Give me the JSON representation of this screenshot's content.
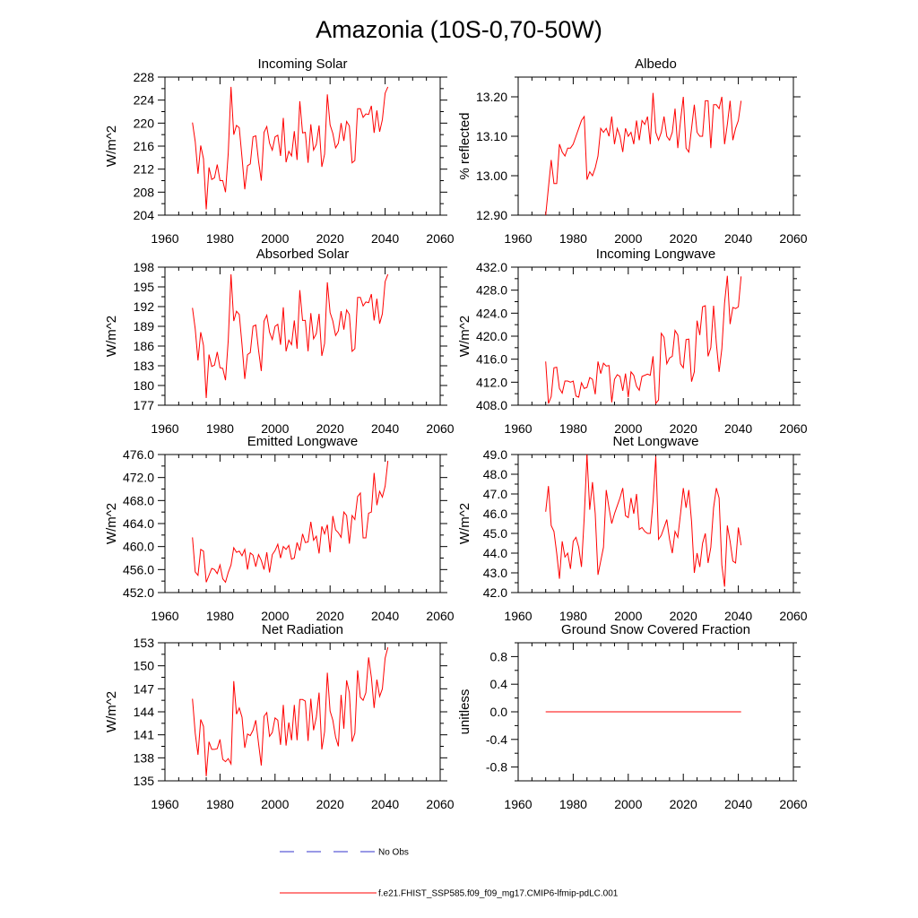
{
  "figure": {
    "title": "Amazonia (10S-0,70-50W)",
    "legend": {
      "obs_label": "No Obs",
      "model_label": "f.e21.FHIST_SSP585.f09_f09_mg17.CMIP6-lfmip-pdLC.001",
      "obs_color": "#3333cc",
      "model_color": "#ff0000"
    }
  },
  "chart_data": [
    {
      "type": "line",
      "title": "Incoming Solar",
      "xlabel": "",
      "ylabel": "W/m^2",
      "xlim": [
        1960,
        2060
      ],
      "ylim": [
        204,
        228
      ],
      "xticks": [
        "1960",
        "1980",
        "2000",
        "2020",
        "2040",
        "2060"
      ],
      "yticks": [
        "204",
        "208",
        "212",
        "216",
        "220",
        "224",
        "228"
      ],
      "series": [
        {
          "name": "f.e21.FHIST_SSP585.f09_f09_mg17.CMIP6-lfmip-pdLC.001",
          "x_start": 1970,
          "values": [
            220.1,
            216.8,
            211.2,
            216.1,
            213.8,
            205.0,
            212.3,
            210.2,
            210.5,
            212.8,
            210.0,
            210.0,
            208.0,
            214.8,
            226.3,
            218.0,
            219.6,
            219.2,
            214.0,
            208.5,
            212.6,
            212.9,
            217.6,
            217.8,
            213.4,
            210.0,
            218.4,
            219.4,
            216.5,
            215.3,
            217.6,
            217.9,
            214.3,
            220.9,
            213.2,
            215.1,
            214.3,
            218.6,
            213.6,
            223.8,
            218.3,
            218.4,
            213.1,
            219.8,
            215.3,
            216.3,
            219.6,
            212.4,
            214.6,
            225.0,
            219.7,
            218.2,
            215.7,
            216.5,
            220.0,
            216.9,
            220.3,
            219.5,
            213.1,
            213.5,
            222.5,
            222.5,
            221.0,
            221.6,
            221.5,
            223.0,
            218.3,
            222.2,
            218.5,
            220.6,
            225.2,
            226.3
          ]
        }
      ]
    },
    {
      "type": "line",
      "title": "Albedo",
      "xlabel": "",
      "ylabel": "% reflected",
      "xlim": [
        1960,
        2060
      ],
      "ylim": [
        12.9,
        13.25
      ],
      "xticks": [
        "1960",
        "1980",
        "2000",
        "2020",
        "2040",
        "2060"
      ],
      "yticks": [
        "12.90",
        "13.00",
        "13.10",
        "13.20"
      ],
      "series": [
        {
          "name": "f.e21.FHIST_SSP585.f09_f09_mg17.CMIP6-lfmip-pdLC.001",
          "x_start": 1970,
          "values": [
            12.9,
            12.97,
            13.04,
            12.98,
            12.98,
            13.08,
            13.06,
            13.05,
            13.07,
            13.07,
            13.08,
            13.1,
            13.12,
            13.14,
            13.15,
            12.99,
            13.01,
            13.0,
            13.02,
            13.05,
            13.12,
            13.11,
            13.12,
            13.1,
            13.15,
            13.08,
            13.12,
            13.1,
            13.06,
            13.12,
            13.1,
            13.11,
            13.08,
            13.14,
            13.09,
            13.14,
            13.13,
            13.15,
            13.08,
            13.21,
            13.11,
            13.09,
            13.11,
            13.15,
            13.1,
            13.09,
            13.11,
            13.17,
            13.07,
            13.14,
            13.2,
            13.07,
            13.06,
            13.12,
            13.18,
            13.11,
            13.1,
            13.1,
            13.19,
            13.19,
            13.07,
            13.18,
            13.18,
            13.17,
            13.2,
            13.08,
            13.13,
            13.19,
            13.09,
            13.12,
            13.14,
            13.19
          ]
        }
      ]
    },
    {
      "type": "line",
      "title": "Absorbed Solar",
      "xlabel": "",
      "ylabel": "W/m^2",
      "xlim": [
        1960,
        2060
      ],
      "ylim": [
        177,
        198
      ],
      "xticks": [
        "1960",
        "1980",
        "2000",
        "2020",
        "2040",
        "2060"
      ],
      "yticks": [
        "177",
        "180",
        "183",
        "186",
        "189",
        "192",
        "195",
        "198"
      ],
      "series": [
        {
          "name": "f.e21.FHIST_SSP585.f09_f09_mg17.CMIP6-lfmip-pdLC.001",
          "x_start": 1970,
          "values": [
            191.8,
            188.6,
            183.8,
            188.1,
            186.1,
            178.1,
            184.7,
            182.9,
            183.1,
            185.1,
            182.7,
            182.6,
            180.8,
            186.9,
            196.9,
            189.8,
            191.3,
            190.8,
            186.2,
            181.0,
            184.7,
            185.0,
            189.0,
            189.2,
            185.4,
            182.2,
            189.8,
            190.7,
            188.1,
            187.0,
            189.0,
            189.3,
            186.2,
            191.9,
            185.2,
            186.9,
            186.2,
            189.9,
            185.6,
            194.5,
            189.9,
            189.9,
            185.2,
            191.0,
            187.1,
            187.9,
            190.9,
            184.5,
            186.4,
            195.7,
            191.1,
            189.8,
            187.6,
            188.3,
            191.3,
            188.5,
            191.5,
            190.8,
            185.2,
            185.6,
            193.4,
            193.4,
            192.1,
            192.7,
            192.6,
            193.9,
            189.9,
            193.2,
            189.4,
            190.9,
            195.8,
            196.9
          ]
        }
      ]
    },
    {
      "type": "line",
      "title": "Incoming Longwave",
      "xlabel": "",
      "ylabel": "W/m^2",
      "xlim": [
        1960,
        2060
      ],
      "ylim": [
        408,
        432
      ],
      "xticks": [
        "1960",
        "1980",
        "2000",
        "2020",
        "2040",
        "2060"
      ],
      "yticks": [
        "408.0",
        "412.0",
        "416.0",
        "420.0",
        "424.0",
        "428.0",
        "432.0"
      ],
      "series": [
        {
          "name": "f.e21.FHIST_SSP585.f09_f09_mg17.CMIP6-lfmip-pdLC.001",
          "x_start": 1970,
          "values": [
            415.6,
            408.3,
            409.5,
            414.5,
            414.6,
            410.9,
            410.1,
            412.2,
            412.2,
            412.0,
            412.2,
            409.6,
            409.4,
            411.9,
            410.9,
            411.1,
            412.8,
            412.5,
            409.9,
            415.6,
            413.5,
            415.3,
            414.8,
            414.9,
            408.5,
            412.5,
            413.3,
            413.0,
            410.5,
            413.5,
            409.4,
            413.8,
            413.2,
            411.3,
            410.6,
            413.0,
            413.2,
            413.4,
            413.2,
            416.5,
            408.3,
            408.9,
            420.5,
            419.8,
            415.2,
            416.2,
            416.5,
            421.0,
            420.2,
            415.2,
            414.5,
            419.4,
            419.5,
            412.1,
            413.8,
            422.7,
            420.2,
            425.1,
            425.3,
            416.5,
            418.0,
            425.3,
            418.8,
            413.8,
            417.8,
            425.8,
            430.5,
            422.1,
            425.0,
            424.8,
            425.1,
            430.4
          ]
        }
      ]
    },
    {
      "type": "line",
      "title": "Emitted Longwave",
      "xlabel": "",
      "ylabel": "W/m^2",
      "xlim": [
        1960,
        2060
      ],
      "ylim": [
        452,
        476
      ],
      "xticks": [
        "1960",
        "1980",
        "2000",
        "2020",
        "2040",
        "2060"
      ],
      "yticks": [
        "452.0",
        "456.0",
        "460.0",
        "464.0",
        "468.0",
        "472.0",
        "476.0"
      ],
      "series": [
        {
          "name": "f.e21.FHIST_SSP585.f09_f09_mg17.CMIP6-lfmip-pdLC.001",
          "x_start": 1970,
          "values": [
            461.6,
            455.6,
            455.0,
            459.5,
            459.2,
            453.8,
            455.0,
            456.2,
            456.0,
            455.3,
            456.8,
            454.4,
            453.8,
            455.5,
            456.8,
            459.8,
            459.0,
            459.2,
            458.4,
            459.5,
            456.0,
            458.9,
            458.5,
            456.5,
            458.6,
            457.6,
            456.0,
            459.0,
            455.5,
            458.6,
            459.3,
            460.4,
            458.0,
            460.0,
            459.5,
            460.2,
            457.8,
            458.0,
            460.7,
            459.3,
            462.2,
            460.7,
            460.8,
            464.3,
            461.1,
            461.8,
            458.8,
            463.5,
            462.2,
            463.8,
            459.0,
            465.3,
            462.9,
            462.4,
            461.6,
            466.0,
            465.4,
            460.5,
            465.4,
            464.7,
            468.7,
            469.3,
            461.5,
            461.5,
            465.8,
            466.0,
            472.8,
            467.2,
            469.6,
            468.6,
            470.5,
            474.9
          ]
        }
      ]
    },
    {
      "type": "line",
      "title": "Net Longwave",
      "xlabel": "",
      "ylabel": "W/m^2",
      "xlim": [
        1960,
        2060
      ],
      "ylim": [
        42,
        49
      ],
      "xticks": [
        "1960",
        "1980",
        "2000",
        "2020",
        "2040",
        "2060"
      ],
      "yticks": [
        "42.0",
        "43.0",
        "44.0",
        "45.0",
        "46.0",
        "47.0",
        "48.0",
        "49.0"
      ],
      "series": [
        {
          "name": "f.e21.FHIST_SSP585.f09_f09_mg17.CMIP6-lfmip-pdLC.001",
          "x_start": 1970,
          "values": [
            46.1,
            47.4,
            45.4,
            45.1,
            44.0,
            42.7,
            44.6,
            43.8,
            44.0,
            43.2,
            44.6,
            44.8,
            44.3,
            43.3,
            45.8,
            49.0,
            46.2,
            47.6,
            46.0,
            42.9,
            43.6,
            44.3,
            47.2,
            46.3,
            45.5,
            46.0,
            46.4,
            46.8,
            47.3,
            45.9,
            45.8,
            46.8,
            46.0,
            47.0,
            45.2,
            45.3,
            45.1,
            45.0,
            45.0,
            46.6,
            48.9,
            44.7,
            44.9,
            45.3,
            45.7,
            44.7,
            44.0,
            45.1,
            44.8,
            46.0,
            47.3,
            46.3,
            47.2,
            45.6,
            43.0,
            44.0,
            43.3,
            44.5,
            45.0,
            43.5,
            44.3,
            46.3,
            47.3,
            46.8,
            43.4,
            42.3,
            45.4,
            44.6,
            43.6,
            43.5,
            45.3,
            44.4
          ]
        }
      ]
    },
    {
      "type": "line",
      "title": "Net Radiation",
      "xlabel": "",
      "ylabel": "W/m^2",
      "xlim": [
        1960,
        2060
      ],
      "ylim": [
        135,
        153
      ],
      "xticks": [
        "1960",
        "1980",
        "2000",
        "2020",
        "2040",
        "2060"
      ],
      "yticks": [
        "135",
        "138",
        "141",
        "144",
        "147",
        "150",
        "153"
      ],
      "series": [
        {
          "name": "f.e21.FHIST_SSP585.f09_f09_mg17.CMIP6-lfmip-pdLC.001",
          "x_start": 1970,
          "values": [
            145.7,
            141.2,
            138.4,
            143.0,
            142.1,
            135.6,
            140.1,
            139.1,
            139.1,
            139.2,
            140.4,
            137.8,
            137.5,
            137.9,
            137.2,
            148.0,
            143.7,
            144.5,
            143.3,
            139.3,
            141.1,
            140.9,
            141.6,
            142.9,
            139.9,
            137.0,
            143.4,
            143.9,
            140.8,
            141.3,
            143.2,
            142.9,
            139.7,
            144.9,
            139.6,
            142.6,
            140.3,
            144.9,
            140.3,
            145.6,
            145.6,
            145.4,
            140.2,
            145.7,
            141.6,
            143.3,
            146.5,
            139.1,
            141.4,
            149.1,
            144.1,
            142.9,
            140.7,
            139.5,
            146.2,
            141.8,
            148.1,
            146.5,
            140.1,
            141.2,
            149.4,
            145.9,
            145.5,
            146.5,
            151.1,
            148.5,
            144.5,
            148.2,
            146.0,
            147.0,
            151.0,
            152.4
          ]
        }
      ]
    },
    {
      "type": "line",
      "title": "Ground Snow Covered Fraction",
      "xlabel": "",
      "ylabel": "unitless",
      "xlim": [
        1960,
        2060
      ],
      "ylim": [
        -1.0,
        1.0
      ],
      "xticks": [
        "1960",
        "1980",
        "2000",
        "2020",
        "2040",
        "2060"
      ],
      "yticks": [
        "-0.8",
        "-0.4",
        "0.0",
        "0.4",
        "0.8"
      ],
      "series": [
        {
          "name": "f.e21.FHIST_SSP585.f09_f09_mg17.CMIP6-lfmip-pdLC.001",
          "x_start": 1970,
          "values": [
            0.0,
            0.0,
            0.0,
            0.0,
            0.0,
            0.0,
            0.0,
            0.0,
            0.0,
            0.0,
            0.0,
            0.0,
            0.0,
            0.0,
            0.0,
            0.0,
            0.0,
            0.0,
            0.0,
            0.0,
            0.0,
            0.0,
            0.0,
            0.0,
            0.0,
            0.0,
            0.0,
            0.0,
            0.0,
            0.0,
            0.0,
            0.0,
            0.0,
            0.0,
            0.0,
            0.0,
            0.0,
            0.0,
            0.0,
            0.0,
            0.0,
            0.0,
            0.0,
            0.0,
            0.0,
            0.0,
            0.0,
            0.0,
            0.0,
            0.0,
            0.0,
            0.0,
            0.0,
            0.0,
            0.0,
            0.0,
            0.0,
            0.0,
            0.0,
            0.0,
            0.0,
            0.0,
            0.0,
            0.0,
            0.0,
            0.0,
            0.0,
            0.0,
            0.0,
            0.0,
            0.0,
            0.0
          ]
        }
      ]
    }
  ]
}
